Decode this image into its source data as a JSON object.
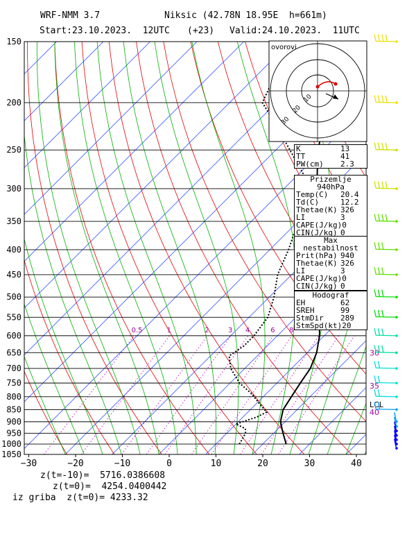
{
  "header": {
    "model": "WRF-NMM 3.7",
    "station": "Niksic (42.78N 18.95E  h=661m)",
    "start": "Start:23.10.2023.  12UTC",
    "lead": "(+23)",
    "valid": "Valid:24.10.2023.  11UTC"
  },
  "panels": {
    "indices": [
      {
        "k": "K",
        "v": "13"
      },
      {
        "k": "TT",
        "v": "41"
      },
      {
        "k": "PW(cm)",
        "v": "2.3"
      }
    ],
    "surface": {
      "title": "Prizemlje 940hPa",
      "rows": [
        {
          "k": "Temp(C)",
          "v": "20.4"
        },
        {
          "k": "Td(C)",
          "v": "12.2"
        },
        {
          "k": "Thetae(K)",
          "v": "326"
        },
        {
          "k": "LI",
          "v": "3"
        },
        {
          "k": "CAPE(J/kg)",
          "v": "0"
        },
        {
          "k": "CIN(J/kg)",
          "v": "0"
        }
      ]
    },
    "maxinst": {
      "title": "Max nestabilnost",
      "rows": [
        {
          "k": "Prit(hPa)",
          "v": "940"
        },
        {
          "k": "Thetae(K)",
          "v": "326"
        },
        {
          "k": "LI",
          "v": "3"
        },
        {
          "k": "CAPE(J/kg)",
          "v": "0"
        },
        {
          "k": "CIN(J/kg)",
          "v": "0"
        }
      ]
    },
    "hodograf": {
      "title": "Hodograf",
      "rows": [
        {
          "k": "EH",
          "v": "62"
        },
        {
          "k": "SREH",
          "v": "99"
        },
        {
          "k": "StmDir",
          "v": "289"
        },
        {
          "k": "StmSpd(kt)",
          "v": "20"
        }
      ]
    }
  },
  "hodo": {
    "label": "ovorovi",
    "ring_labels": [
      "10",
      "20",
      "30"
    ]
  },
  "chart_data": {
    "type": "line",
    "title": "",
    "xlabel": "",
    "ylabel": "",
    "ylim": [
      1050,
      150
    ],
    "xlim": [
      -30,
      42
    ],
    "yscale": "log",
    "pressure_ticks": [
      150,
      200,
      250,
      300,
      350,
      400,
      450,
      500,
      550,
      600,
      650,
      700,
      750,
      800,
      850,
      900,
      950,
      1000,
      1050
    ],
    "temp_ticks": [
      -30,
      -20,
      -10,
      0,
      10,
      20,
      30,
      40
    ],
    "mixing_ratio_labels": [
      "0.5",
      "1",
      "2",
      "3",
      "4",
      "6",
      "8"
    ],
    "side_labels": [
      {
        "text": "30",
        "p": 650
      },
      {
        "text": "35",
        "p": 760
      },
      {
        "text": "LCL",
        "p": 830
      },
      {
        "text": "40",
        "p": 860
      }
    ],
    "series": [
      {
        "name": "",
        "style": "solid",
        "points": [
          [
            1000,
            25
          ],
          [
            950,
            22
          ],
          [
            900,
            19
          ],
          [
            850,
            17
          ],
          [
            800,
            16
          ],
          [
            750,
            15
          ],
          [
            700,
            14
          ],
          [
            650,
            12
          ],
          [
            600,
            9
          ],
          [
            550,
            5
          ],
          [
            500,
            1
          ],
          [
            450,
            -4
          ],
          [
            400,
            -9
          ],
          [
            350,
            -16
          ],
          [
            300,
            -23
          ],
          [
            250,
            -31
          ],
          [
            200,
            -39
          ],
          [
            150,
            -48
          ]
        ]
      },
      {
        "name": "",
        "style": "dotted",
        "points": [
          [
            1000,
            15
          ],
          [
            950,
            14
          ],
          [
            930,
            13
          ],
          [
            910,
            10
          ],
          [
            880,
            13
          ],
          [
            860,
            14
          ],
          [
            830,
            11
          ],
          [
            790,
            7
          ],
          [
            750,
            2
          ],
          [
            700,
            -3
          ],
          [
            660,
            -6
          ],
          [
            630,
            -5
          ],
          [
            600,
            -5
          ],
          [
            550,
            -6
          ],
          [
            500,
            -9
          ],
          [
            450,
            -13
          ],
          [
            400,
            -16
          ],
          [
            350,
            -20
          ],
          [
            300,
            -26
          ],
          [
            280,
            -29
          ],
          [
            250,
            -37
          ],
          [
            220,
            -46
          ],
          [
            200,
            -53
          ],
          [
            150,
            -60
          ]
        ]
      }
    ]
  },
  "wind_colors": [
    "#0000ff",
    "#00a0ff",
    "#00dddd",
    "#00e0a0",
    "#00e000",
    "#60e000",
    "#d0e000",
    "#f0e000"
  ],
  "bottom": {
    "line1_label": "z(t=-10)=",
    "line1_value": "5716.0386608",
    "line2_label": "z(t=0)=",
    "line2_value": "4254.0400442",
    "line3_label": "iz griba  z(t=0)=",
    "line3_value": "4233.32"
  }
}
